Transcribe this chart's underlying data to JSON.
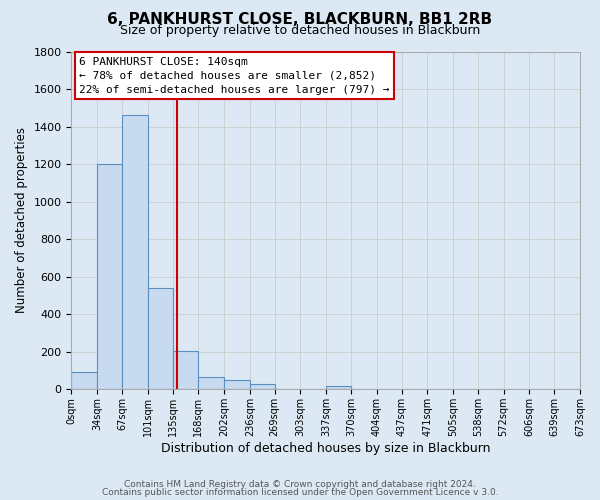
{
  "title": "6, PANKHURST CLOSE, BLACKBURN, BB1 2RB",
  "subtitle": "Size of property relative to detached houses in Blackburn",
  "xlabel": "Distribution of detached houses by size in Blackburn",
  "ylabel": "Number of detached properties",
  "footer_line1": "Contains HM Land Registry data © Crown copyright and database right 2024.",
  "footer_line2": "Contains public sector information licensed under the Open Government Licence v 3.0.",
  "bin_edges": [
    0,
    34,
    67,
    101,
    135,
    168,
    202,
    236,
    269,
    303,
    337,
    370,
    404,
    437,
    471,
    505,
    538,
    572,
    606,
    639,
    673
  ],
  "bin_labels": [
    "0sqm",
    "34sqm",
    "67sqm",
    "101sqm",
    "135sqm",
    "168sqm",
    "202sqm",
    "236sqm",
    "269sqm",
    "303sqm",
    "337sqm",
    "370sqm",
    "404sqm",
    "437sqm",
    "471sqm",
    "505sqm",
    "538sqm",
    "572sqm",
    "606sqm",
    "639sqm",
    "673sqm"
  ],
  "values": [
    90,
    1200,
    1460,
    540,
    205,
    65,
    48,
    30,
    0,
    0,
    20,
    0,
    0,
    0,
    0,
    0,
    0,
    0,
    0,
    0
  ],
  "bar_color": "#c8daf0",
  "bar_edge_color": "#5a8fc0",
  "property_line_x": 140,
  "property_line_color": "#cc0000",
  "annotation_line1": "6 PANKHURST CLOSE: 140sqm",
  "annotation_line2": "← 78% of detached houses are smaller (2,852)",
  "annotation_line3": "22% of semi-detached houses are larger (797) →",
  "annotation_box_color": "#cc0000",
  "ylim": [
    0,
    1800
  ],
  "yticks": [
    0,
    200,
    400,
    600,
    800,
    1000,
    1200,
    1400,
    1600,
    1800
  ],
  "grid_color": "#cccccc",
  "background_color": "#dce9f5"
}
